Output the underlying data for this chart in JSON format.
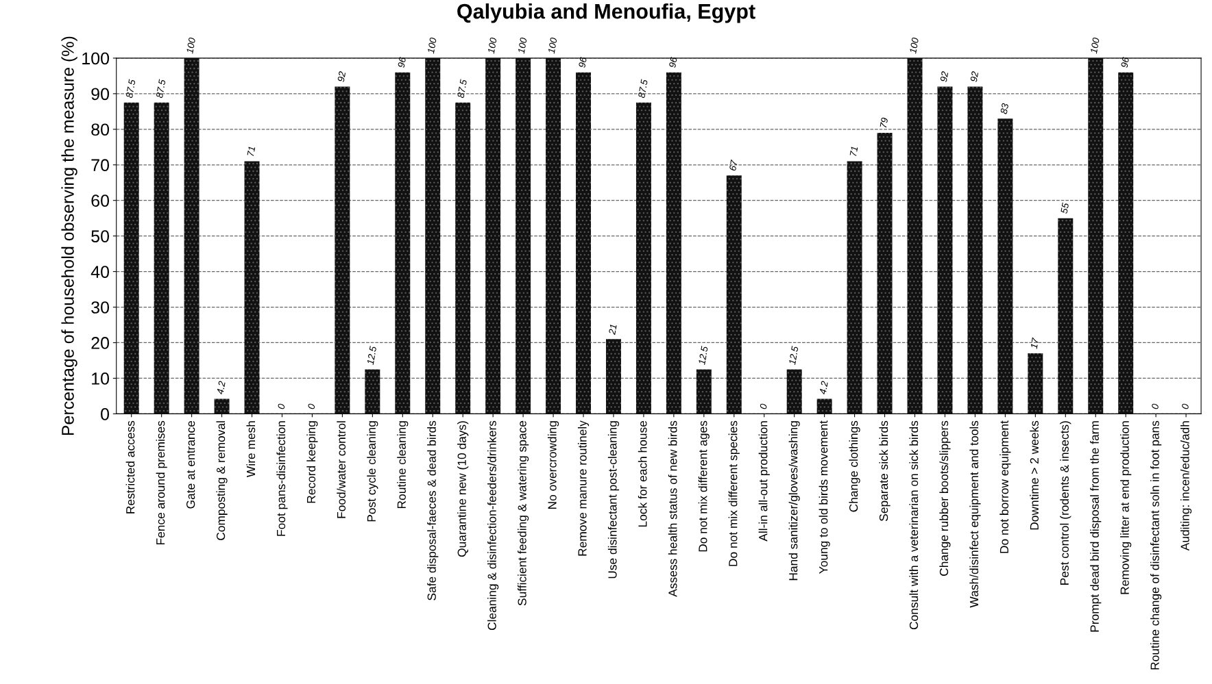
{
  "chart_data": {
    "type": "bar",
    "title": "Qalyubia and Menoufia, Egypt",
    "ylabel": "Percentage of household observing the measure (%)",
    "categories": [
      "Restricted access",
      "Fence around premises",
      "Gate at entrance",
      "Composting & removal",
      "Wire mesh",
      "Foot pans-disinfection",
      "Record keeping",
      "Food/water control",
      "Post cycle cleaning",
      "Routine cleaning",
      "Safe disposal-faeces & dead birds",
      "Quarantine new (10 days)",
      "Cleaning & disinfection-feeders/drinkers",
      "Sufficient feeding & watering space",
      "No overcrowding",
      "Remove manure routinely",
      "Use disinfectant post-cleaning",
      "Lock for each house",
      "Assess health status of new birds",
      "Do not mix different ages",
      "Do not mix different species",
      "All-in all-out production",
      "Hand sanitizer/gloves/washing",
      "Young to old birds movement",
      "Change clothings",
      "Separate sick birds",
      "Consult with a veterinarian on sick birds",
      "Change rubber boots/slippers",
      "Wash/disinfect equipment and tools",
      "Do not borrow equipment",
      "Downtime > 2 weeks",
      "Pest control (rodents & insects)",
      "Prompt dead bird disposal from the farm",
      "Removing litter at end production",
      "Routine change of disinfectant soln in foot pans",
      "Auditing: incen/educ/adh"
    ],
    "values": [
      87.5,
      87.5,
      100,
      4.2,
      71,
      0,
      0,
      92,
      12.5,
      96,
      100,
      87.5,
      100,
      100,
      100,
      96,
      21,
      87.5,
      96,
      12.5,
      67,
      0,
      12.5,
      4.2,
      71,
      79,
      100,
      92,
      92,
      83,
      17,
      55,
      100,
      96,
      0,
      0
    ],
    "color": "#111111",
    "ylim": [
      0,
      100
    ],
    "yticks": [
      0,
      10,
      20,
      30,
      40,
      50,
      60,
      70,
      80,
      90,
      100
    ],
    "grid": "y",
    "line_style": "dashed",
    "data_labels": true
  }
}
